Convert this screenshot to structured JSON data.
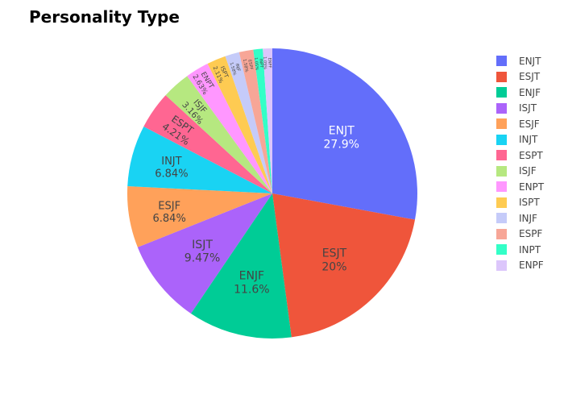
{
  "chart_data": {
    "type": "pie",
    "title": "Personality Type",
    "legend_position": "right",
    "text_info": "label+percent",
    "slices": [
      {
        "label": "ENJT",
        "value": 27.9,
        "percent_text": "27.9%",
        "color": "#636efa"
      },
      {
        "label": "ESJT",
        "value": 20.0,
        "percent_text": "20%",
        "color": "#EF553B"
      },
      {
        "label": "ENJF",
        "value": 11.6,
        "percent_text": "11.6%",
        "color": "#00cc96"
      },
      {
        "label": "ISJT",
        "value": 9.47,
        "percent_text": "9.47%",
        "color": "#ab63fa"
      },
      {
        "label": "ESJF",
        "value": 6.84,
        "percent_text": "6.84%",
        "color": "#FFA15A"
      },
      {
        "label": "INJT",
        "value": 6.84,
        "percent_text": "6.84%",
        "color": "#19d3f3"
      },
      {
        "label": "ESPT",
        "value": 4.21,
        "percent_text": "4.21%",
        "color": "#FF6692"
      },
      {
        "label": "ISJF",
        "value": 3.16,
        "percent_text": "3.16%",
        "color": "#B6E880"
      },
      {
        "label": "ENPT",
        "value": 2.63,
        "percent_text": "2.63%",
        "color": "#FF97FF"
      },
      {
        "label": "ISPT",
        "value": 2.11,
        "percent_text": "2.11%",
        "color": "#FECB52"
      },
      {
        "label": "INJF",
        "value": 1.58,
        "percent_text": "1.58%",
        "color": "#c5cbf9"
      },
      {
        "label": "ESPF",
        "value": 1.58,
        "percent_text": "1.58%",
        "color": "#f7a697"
      },
      {
        "label": "INPT",
        "value": 1.05,
        "percent_text": "1.05%",
        "color": "#33ffc7"
      },
      {
        "label": "ENPF",
        "value": 1.05,
        "percent_text": "1.05%",
        "color": "#dcc6fb"
      }
    ]
  }
}
